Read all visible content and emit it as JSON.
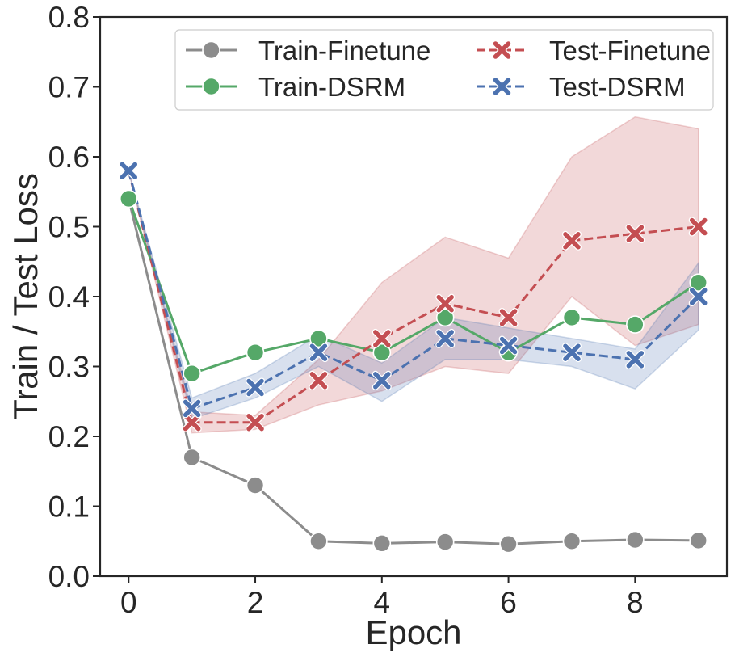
{
  "chart_data": {
    "type": "line",
    "title": "",
    "xlabel": "Epoch",
    "ylabel": "Train / Test Loss",
    "xlim": [
      -0.45,
      9.45
    ],
    "ylim": [
      0.0,
      0.8
    ],
    "xticks": [
      "0",
      "2",
      "4",
      "6",
      "8"
    ],
    "xtick_values": [
      0,
      2,
      4,
      6,
      8
    ],
    "yticks": [
      "0.0",
      "0.1",
      "0.2",
      "0.3",
      "0.4",
      "0.5",
      "0.6",
      "0.7",
      "0.8"
    ],
    "ytick_values": [
      0.0,
      0.1,
      0.2,
      0.3,
      0.4,
      0.5,
      0.6,
      0.7,
      0.8
    ],
    "grid": false,
    "legend_position": "top-right",
    "x": [
      0,
      1,
      2,
      3,
      4,
      5,
      6,
      7,
      8,
      9
    ],
    "series": [
      {
        "name": "Train-Finetune",
        "color": "#8c8c8c",
        "marker": "circle",
        "linestyle": "solid",
        "values": [
          0.54,
          0.17,
          0.13,
          0.05,
          0.047,
          0.049,
          0.046,
          0.05,
          0.052,
          0.051
        ]
      },
      {
        "name": "Train-DSRM",
        "color": "#55a868",
        "marker": "circle",
        "linestyle": "solid",
        "values": [
          0.54,
          0.29,
          0.32,
          0.34,
          0.32,
          0.37,
          0.32,
          0.37,
          0.36,
          0.42
        ]
      },
      {
        "name": "Test-Finetune",
        "color": "#c44e52",
        "marker": "x",
        "linestyle": "dashed",
        "values": [
          0.58,
          0.22,
          0.22,
          0.28,
          0.34,
          0.39,
          0.37,
          0.48,
          0.49,
          0.5
        ],
        "band_lower": [
          0.58,
          0.205,
          0.21,
          0.245,
          0.265,
          0.3,
          0.29,
          0.4,
          0.33,
          0.36
        ],
        "band_upper": [
          0.58,
          0.235,
          0.23,
          0.31,
          0.42,
          0.485,
          0.455,
          0.6,
          0.657,
          0.64
        ]
      },
      {
        "name": "Test-DSRM",
        "color": "#4c72b0",
        "marker": "x",
        "linestyle": "dashed",
        "values": [
          0.58,
          0.24,
          0.27,
          0.32,
          0.28,
          0.34,
          0.33,
          0.32,
          0.31,
          0.4
        ],
        "band_lower": [
          0.58,
          0.225,
          0.255,
          0.3,
          0.25,
          0.31,
          0.31,
          0.3,
          0.268,
          0.352
        ],
        "band_upper": [
          0.58,
          0.255,
          0.29,
          0.345,
          0.305,
          0.37,
          0.355,
          0.34,
          0.325,
          0.448
        ]
      }
    ]
  }
}
